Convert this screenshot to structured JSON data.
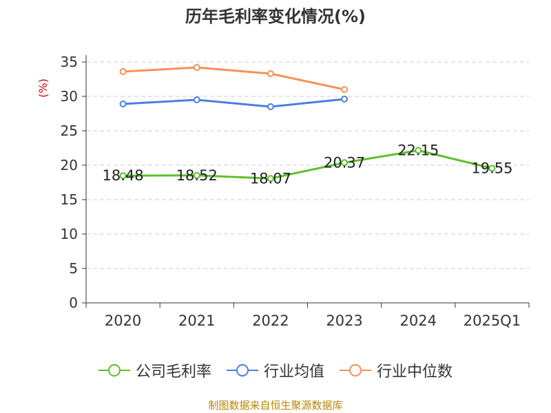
{
  "chart_data": {
    "type": "line",
    "title": "历年毛利率变化情况(%)",
    "ylabel": "(%)",
    "xlabel": "",
    "ylim": [
      0,
      35
    ],
    "yticks": [
      0,
      5,
      10,
      15,
      20,
      25,
      30,
      35
    ],
    "grid": true,
    "legend_position": "bottom",
    "categories": [
      "2020",
      "2021",
      "2022",
      "2023",
      "2024",
      "2025Q1"
    ],
    "series": [
      {
        "name": "公司毛利率",
        "color": "#5cc02b",
        "values": [
          18.48,
          18.52,
          18.07,
          20.37,
          22.15,
          19.55
        ],
        "labels": [
          "18.48",
          "18.52",
          "18.07",
          "20.37",
          "22.15",
          "19.55"
        ]
      },
      {
        "name": "行业均值",
        "color": "#4a7fe0",
        "values": [
          28.9,
          29.5,
          28.5,
          29.6,
          null,
          null
        ]
      },
      {
        "name": "行业中位数",
        "color": "#f59157",
        "values": [
          33.6,
          34.2,
          33.3,
          31.0,
          null,
          null
        ]
      }
    ]
  },
  "source": "制图数据来自恒生聚源数据库"
}
